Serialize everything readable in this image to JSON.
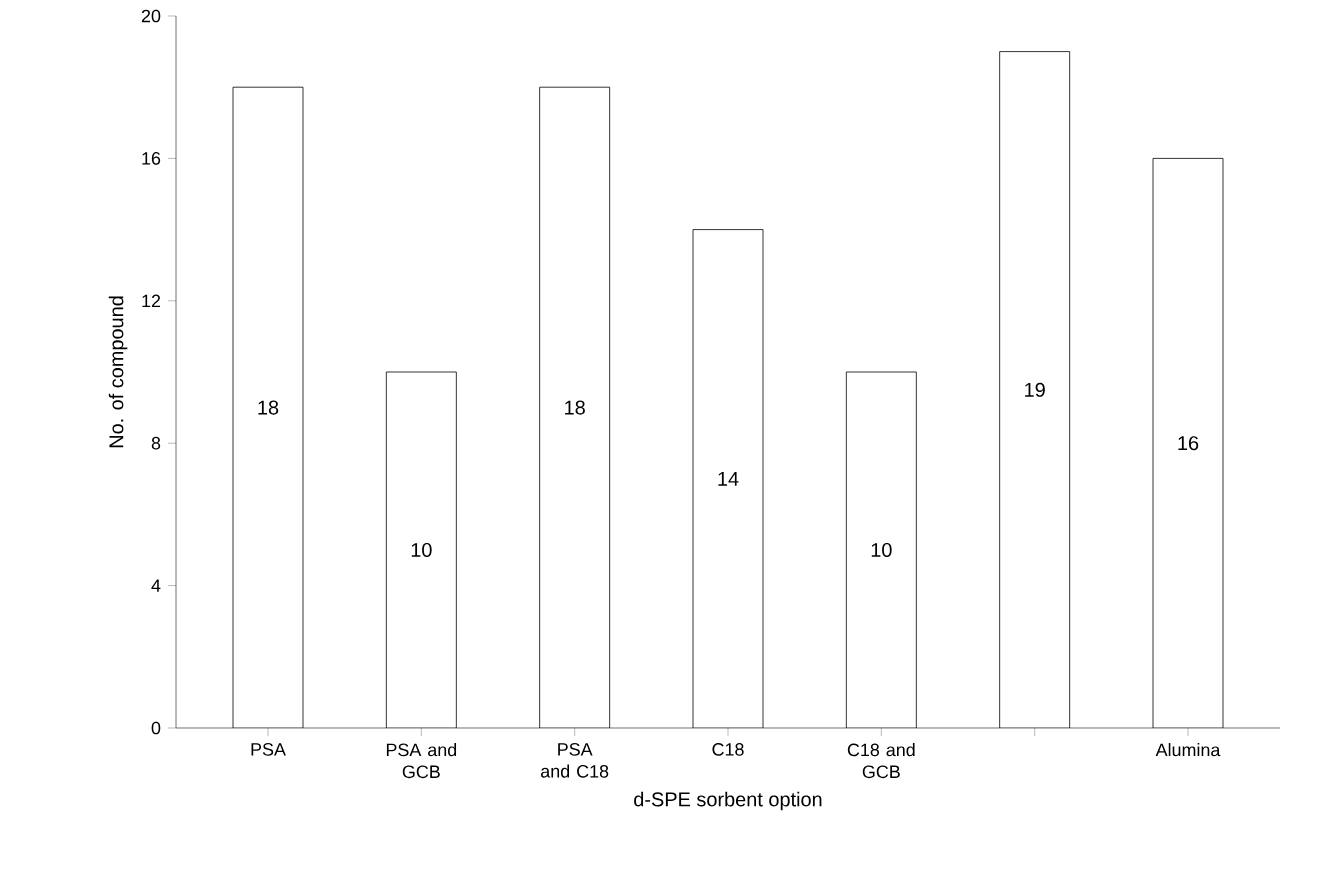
{
  "chart_data": {
    "type": "bar",
    "xlabel": "d-SPE sorbent option",
    "ylabel": "No. of compound",
    "categories": [
      "PSA",
      "PSA and GCB",
      "PSA and C18",
      "C18",
      "C18 and GCB",
      null,
      "Alumina"
    ],
    "values": [
      18,
      10,
      18,
      14,
      10,
      19,
      16
    ],
    "color": "#ffffff",
    "ylim": [
      0,
      20
    ],
    "yticks": [
      0,
      4,
      8,
      12,
      16,
      20
    ],
    "data_labels": true,
    "grid": false
  }
}
